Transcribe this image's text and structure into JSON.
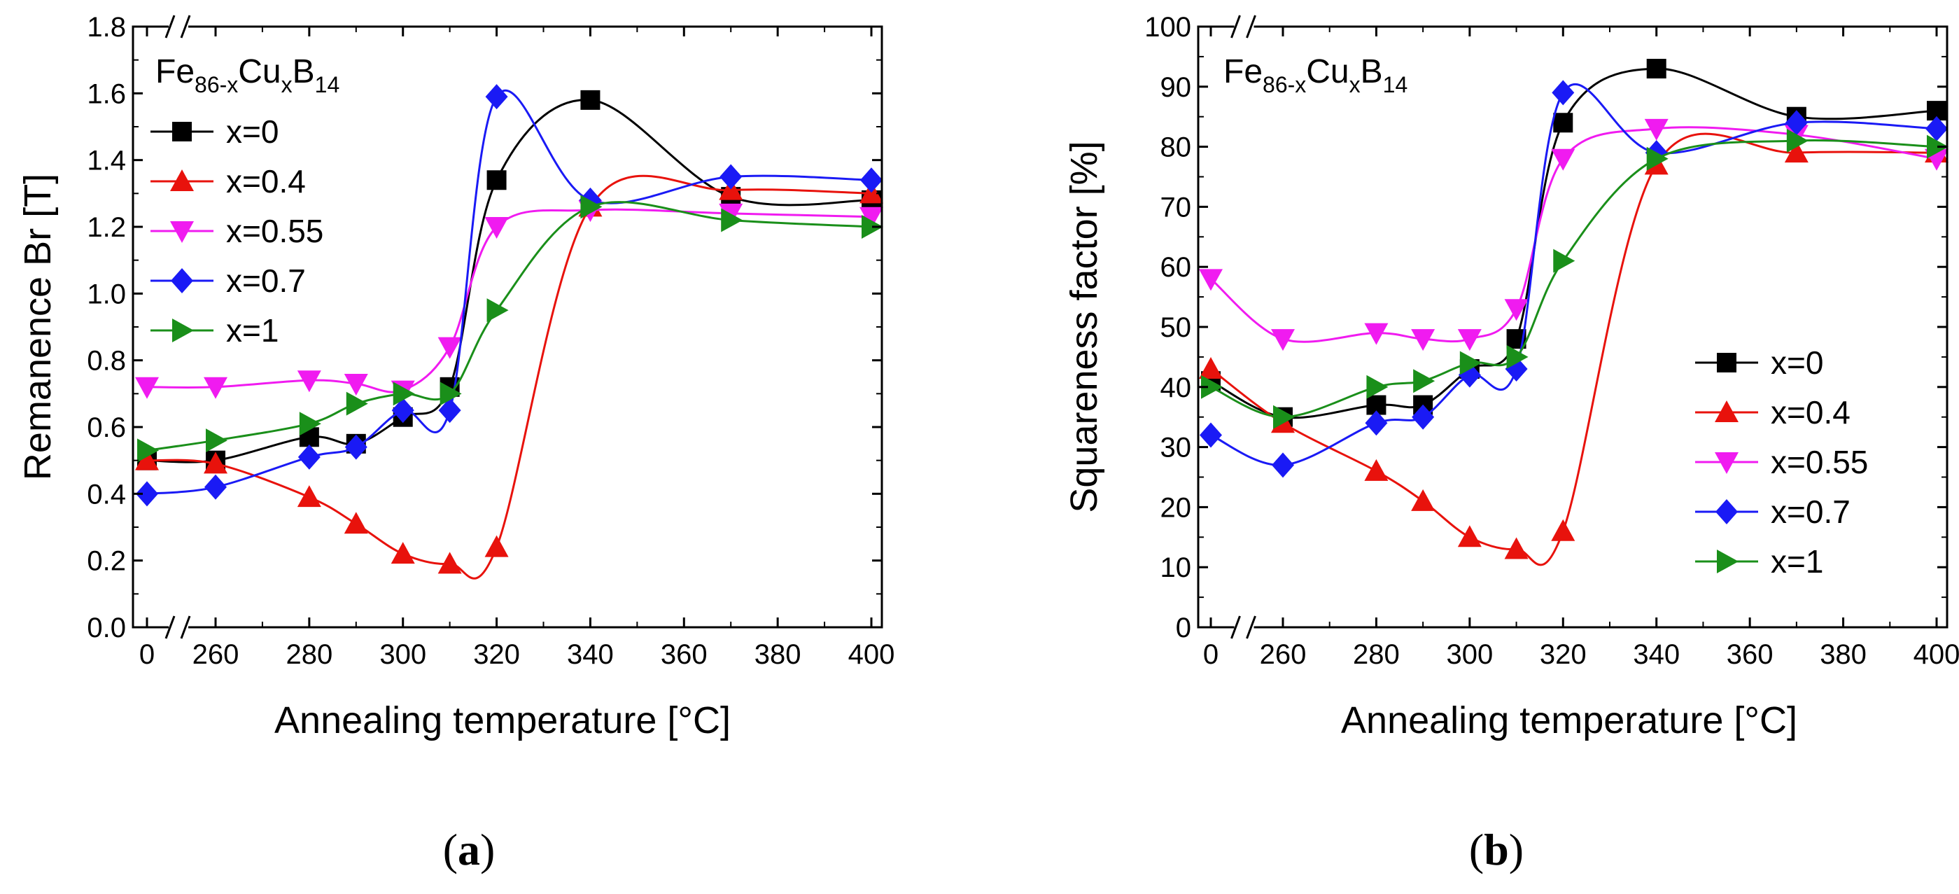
{
  "figure": {
    "panel_labels": [
      {
        "open": "(",
        "letter": "a",
        "close": ")"
      },
      {
        "open": "(",
        "letter": "b",
        "close": ")"
      }
    ]
  },
  "chart_data": [
    {
      "type": "line",
      "panel": "a",
      "title": "",
      "formula": {
        "el1": "Fe",
        "sub1": "86-x",
        "el2": "Cu",
        "sub2": "x",
        "el3": "B",
        "sub3": "14"
      },
      "xlabel": "Annealing temperature [°C]",
      "ylabel": "Remanence Br [T]",
      "x_ticks": [
        0,
        260,
        280,
        300,
        320,
        340,
        360,
        380,
        400
      ],
      "x_tick_labels": [
        "0",
        "260",
        "280",
        "300",
        "320",
        "340",
        "360",
        "380",
        "400"
      ],
      "y_ticks": [
        0.0,
        0.2,
        0.4,
        0.6,
        0.8,
        1.0,
        1.2,
        1.4,
        1.6,
        1.8
      ],
      "y_tick_labels": [
        "0.0",
        "0.2",
        "0.4",
        "0.6",
        "0.8",
        "1.0",
        "1.2",
        "1.4",
        "1.6",
        "1.8"
      ],
      "ylim": [
        0,
        1.8
      ],
      "axis_break": "x-axis break between 0 and 260",
      "legend_position": "top-left",
      "x": [
        0,
        260,
        280,
        290,
        300,
        310,
        320,
        340,
        370,
        400
      ],
      "series": [
        {
          "name": "x=0",
          "color": "#000000",
          "marker": "square",
          "values": [
            0.5,
            0.5,
            0.57,
            0.55,
            0.63,
            0.72,
            1.34,
            1.58,
            1.29,
            1.28
          ]
        },
        {
          "name": "x=0.4",
          "color": "#e8120c",
          "marker": "triangle-up",
          "values": [
            0.5,
            0.49,
            0.39,
            0.31,
            0.22,
            0.19,
            0.24,
            1.26,
            1.31,
            1.3
          ]
        },
        {
          "name": "x=0.55",
          "color": "#f01bf0",
          "marker": "triangle-down",
          "values": [
            0.72,
            0.72,
            0.74,
            0.73,
            0.71,
            0.84,
            1.2,
            1.25,
            1.24,
            1.23
          ]
        },
        {
          "name": "x=0.7",
          "color": "#1a1af5",
          "marker": "diamond",
          "values": [
            0.4,
            0.42,
            0.51,
            0.54,
            0.65,
            0.65,
            1.59,
            1.28,
            1.35,
            1.34
          ]
        },
        {
          "name": "x=1",
          "color": "#1a8f1a",
          "marker": "triangle-right",
          "values": [
            0.53,
            0.56,
            0.61,
            0.67,
            0.7,
            0.7,
            0.95,
            1.26,
            1.22,
            1.2
          ]
        }
      ]
    },
    {
      "type": "line",
      "panel": "b",
      "title": "",
      "formula": {
        "el1": "Fe",
        "sub1": "86-x",
        "el2": "Cu",
        "sub2": "x",
        "el3": "B",
        "sub3": "14"
      },
      "xlabel": "Annealing temperature [°C]",
      "ylabel": "Squareness factor [%]",
      "x_ticks": [
        0,
        260,
        280,
        300,
        320,
        340,
        360,
        380,
        400
      ],
      "x_tick_labels": [
        "0",
        "260",
        "280",
        "300",
        "320",
        "340",
        "360",
        "380",
        "400"
      ],
      "y_ticks": [
        0,
        10,
        20,
        30,
        40,
        50,
        60,
        70,
        80,
        90,
        100
      ],
      "y_tick_labels": [
        "0",
        "10",
        "20",
        "30",
        "40",
        "50",
        "60",
        "70",
        "80",
        "90",
        "100"
      ],
      "ylim": [
        0,
        100
      ],
      "axis_break": "x-axis break between 0 and 260",
      "legend_position": "bottom-right",
      "x": [
        0,
        260,
        280,
        290,
        300,
        310,
        320,
        340,
        370,
        400
      ],
      "series": [
        {
          "name": "x=0",
          "color": "#000000",
          "marker": "square",
          "values": [
            41,
            35,
            37,
            37,
            43,
            48,
            84,
            93,
            85,
            86
          ]
        },
        {
          "name": "x=0.4",
          "color": "#e8120c",
          "marker": "triangle-up",
          "values": [
            43,
            34,
            26,
            21,
            15,
            13,
            16,
            77,
            79,
            79
          ]
        },
        {
          "name": "x=0.55",
          "color": "#f01bf0",
          "marker": "triangle-down",
          "values": [
            58,
            48,
            49,
            48,
            48,
            53,
            78,
            83,
            82,
            78
          ]
        },
        {
          "name": "x=0.7",
          "color": "#1a1af5",
          "marker": "diamond",
          "values": [
            32,
            27,
            34,
            35,
            42,
            43,
            89,
            79,
            84,
            83
          ]
        },
        {
          "name": "x=1",
          "color": "#1a8f1a",
          "marker": "triangle-right",
          "values": [
            40,
            35,
            40,
            41,
            44,
            45,
            61,
            78,
            81,
            80
          ]
        }
      ]
    }
  ]
}
